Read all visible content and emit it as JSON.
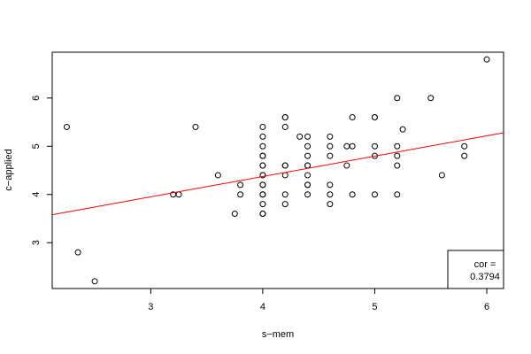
{
  "chart_data": {
    "type": "scatter",
    "xlabel": "s−mem",
    "ylabel": "c−applied",
    "xlim": [
      2.12,
      6.15
    ],
    "ylim": [
      2.05,
      6.95
    ],
    "x_ticks": [
      3,
      4,
      5,
      6
    ],
    "y_ticks": [
      3,
      4,
      5,
      6
    ],
    "grid": false,
    "point_color": "#000000",
    "line_color": "#ff0000",
    "regression_line": {
      "x": [
        2.12,
        6.15
      ],
      "y": [
        3.58,
        5.28
      ]
    },
    "legend": {
      "position": "bottom-right",
      "label": "cor =",
      "value": "0.3794"
    },
    "points": [
      [
        2.25,
        5.4
      ],
      [
        2.35,
        2.8
      ],
      [
        2.5,
        2.2
      ],
      [
        3.2,
        4.0
      ],
      [
        3.25,
        4.0
      ],
      [
        3.4,
        5.4
      ],
      [
        3.6,
        4.4
      ],
      [
        3.75,
        3.6
      ],
      [
        3.8,
        4.2
      ],
      [
        3.8,
        4.0
      ],
      [
        4.0,
        5.4
      ],
      [
        4.0,
        5.2
      ],
      [
        4.0,
        5.0
      ],
      [
        4.0,
        4.8
      ],
      [
        4.0,
        4.6
      ],
      [
        4.0,
        4.4
      ],
      [
        4.0,
        4.2
      ],
      [
        4.0,
        4.0
      ],
      [
        4.0,
        3.8
      ],
      [
        4.0,
        3.6
      ],
      [
        4.0,
        4.8
      ],
      [
        4.0,
        4.4
      ],
      [
        4.0,
        4.0
      ],
      [
        4.0,
        3.6
      ],
      [
        4.0,
        4.2
      ],
      [
        4.0,
        4.6
      ],
      [
        4.2,
        5.6
      ],
      [
        4.2,
        5.4
      ],
      [
        4.2,
        4.6
      ],
      [
        4.2,
        4.4
      ],
      [
        4.2,
        4.0
      ],
      [
        4.2,
        3.8
      ],
      [
        4.2,
        5.6
      ],
      [
        4.2,
        4.6
      ],
      [
        4.33,
        5.2
      ],
      [
        4.4,
        5.2
      ],
      [
        4.4,
        5.0
      ],
      [
        4.4,
        4.8
      ],
      [
        4.4,
        4.6
      ],
      [
        4.4,
        4.4
      ],
      [
        4.4,
        4.2
      ],
      [
        4.4,
        4.0
      ],
      [
        4.4,
        4.6
      ],
      [
        4.4,
        4.2
      ],
      [
        4.6,
        5.2
      ],
      [
        4.6,
        5.0
      ],
      [
        4.6,
        4.8
      ],
      [
        4.6,
        4.2
      ],
      [
        4.6,
        4.0
      ],
      [
        4.6,
        3.8
      ],
      [
        4.75,
        5.0
      ],
      [
        4.75,
        4.6
      ],
      [
        4.8,
        5.6
      ],
      [
        4.8,
        5.0
      ],
      [
        4.8,
        4.0
      ],
      [
        5.0,
        5.6
      ],
      [
        5.0,
        5.6
      ],
      [
        5.0,
        5.0
      ],
      [
        5.0,
        4.8
      ],
      [
        5.0,
        4.0
      ],
      [
        5.2,
        6.0
      ],
      [
        5.2,
        5.0
      ],
      [
        5.2,
        4.8
      ],
      [
        5.2,
        4.6
      ],
      [
        5.2,
        4.0
      ],
      [
        5.25,
        5.35
      ],
      [
        5.5,
        6.0
      ],
      [
        5.6,
        4.4
      ],
      [
        5.8,
        5.0
      ],
      [
        5.8,
        4.8
      ],
      [
        5.8,
        2.2
      ],
      [
        6.0,
        6.8
      ]
    ]
  }
}
